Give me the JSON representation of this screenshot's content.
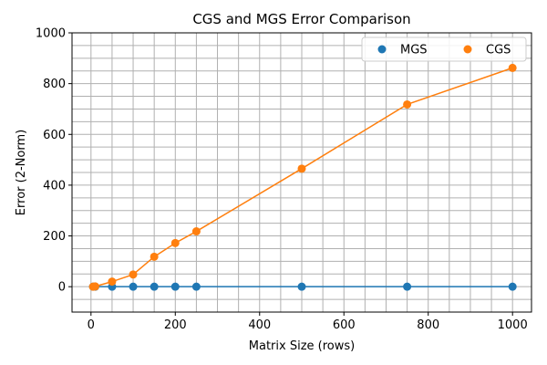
{
  "chart_data": {
    "type": "line",
    "title": "CGS and MGS Error Comparison",
    "xlabel": "Matrix Size (rows)",
    "ylabel": "Error (2-Norm)",
    "xlim": [
      -45,
      1045
    ],
    "ylim": [
      -100,
      1000
    ],
    "x_ticks": [
      0,
      200,
      400,
      600,
      800,
      1000
    ],
    "x_tick_labels": [
      "0",
      "200",
      "400",
      "600",
      "800",
      "1000"
    ],
    "y_ticks": [
      0,
      200,
      400,
      600,
      800,
      1000
    ],
    "y_tick_labels": [
      "0",
      "200",
      "400",
      "600",
      "800",
      "1000"
    ],
    "x_grid_step": 50,
    "y_grid_step": 50,
    "grid": true,
    "legend": {
      "position": "top-right",
      "columns": 2
    },
    "series": [
      {
        "name": "MGS",
        "color": "#1f77b4",
        "x": [
          5,
          10,
          50,
          100,
          150,
          200,
          250,
          500,
          750,
          1000
        ],
        "y": [
          0,
          0,
          0,
          0,
          0,
          0,
          0,
          0,
          0,
          0
        ]
      },
      {
        "name": "CGS",
        "color": "#ff7f0e",
        "x": [
          5,
          10,
          50,
          100,
          150,
          200,
          250,
          500,
          750,
          1000
        ],
        "y": [
          0,
          1,
          20,
          48,
          118,
          172,
          218,
          465,
          718,
          862
        ]
      }
    ]
  }
}
